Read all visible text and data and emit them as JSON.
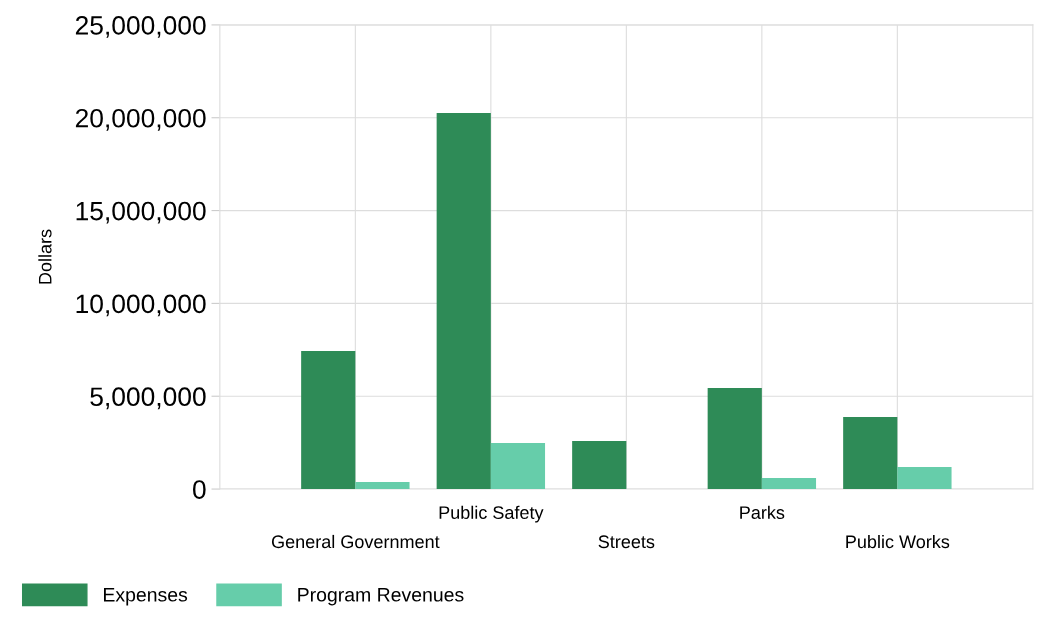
{
  "chart_data": {
    "type": "bar",
    "ylabel": "Dollars",
    "categories": [
      "General Government",
      "Public Safety",
      "Streets",
      "Parks",
      "Public Works"
    ],
    "series": [
      {
        "name": "Expenses",
        "color": "#2e8b57",
        "values": [
          7440000,
          20260000,
          2590000,
          5440000,
          3880000
        ]
      },
      {
        "name": "Program Revenues",
        "color": "#66cdaa",
        "values": [
          380000,
          2480000,
          null,
          590000,
          1190000
        ]
      }
    ],
    "ylim": [
      0,
      25000000
    ],
    "yticks": [
      {
        "value": 0,
        "label": "0"
      },
      {
        "value": 5000000,
        "label": "5,000,000"
      },
      {
        "value": 10000000,
        "label": "10,000,000"
      },
      {
        "value": 15000000,
        "label": "15,000,000"
      },
      {
        "value": 20000000,
        "label": "20,000,000"
      },
      {
        "value": 25000000,
        "label": "25,000,000"
      }
    ],
    "grid": true,
    "legend": "bottom left"
  }
}
